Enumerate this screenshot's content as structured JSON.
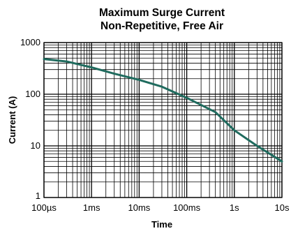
{
  "chart_data": {
    "type": "line",
    "title": "Maximum Surge Current",
    "subtitle": "Non-Repetitive, Free Air",
    "xlabel": "Time",
    "ylabel": "Current (A)",
    "x_scale": "log",
    "y_scale": "log",
    "xlim": [
      0.0001,
      10
    ],
    "ylim": [
      1,
      1000
    ],
    "x_ticks": [
      {
        "value": 0.0001,
        "label": "100µs"
      },
      {
        "value": 0.001,
        "label": "1ms"
      },
      {
        "value": 0.01,
        "label": "10ms"
      },
      {
        "value": 0.1,
        "label": "100ms"
      },
      {
        "value": 1,
        "label": "1s"
      },
      {
        "value": 10,
        "label": "10s"
      }
    ],
    "y_ticks": [
      {
        "value": 1,
        "label": "1"
      },
      {
        "value": 10,
        "label": "10"
      },
      {
        "value": 100,
        "label": "100"
      },
      {
        "value": 1000,
        "label": "1000"
      }
    ],
    "grid": true,
    "series": [
      {
        "color": "#1f6b5e",
        "x": [
          0.0001,
          0.0003,
          0.001,
          0.003,
          0.01,
          0.03,
          0.1,
          0.4,
          1,
          3,
          10
        ],
        "y": [
          480,
          430,
          330,
          250,
          190,
          140,
          85,
          45,
          20,
          10,
          5
        ]
      }
    ]
  },
  "colors": {
    "grid": "#000000",
    "line": "#1f6b5e"
  }
}
